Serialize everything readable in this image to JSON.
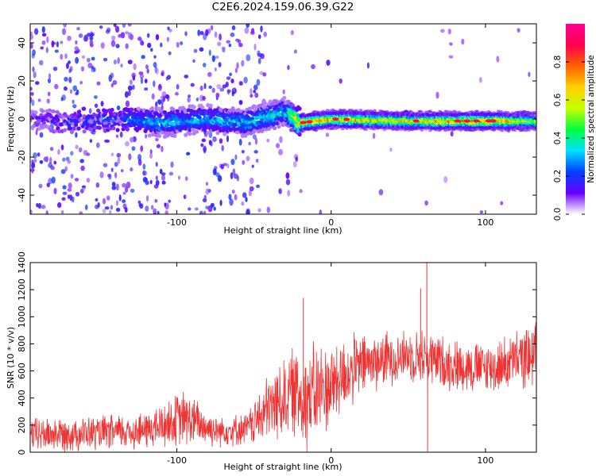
{
  "title": "C2E6.2024.159.06.39.G22",
  "chart_data": [
    {
      "type": "heatmap",
      "xlabel": "Height of straight line (km)",
      "ylabel": "Frequency (Hz)",
      "xlim": [
        -195,
        133
      ],
      "ylim": [
        -50,
        50
      ],
      "x_ticks": [
        -100,
        0,
        100
      ],
      "y_ticks": [
        -40,
        -20,
        0,
        20,
        40
      ],
      "colorbar": {
        "label": "Normalized spectral amplitude",
        "range": [
          0,
          1
        ],
        "ticks": [
          0.0,
          0.2,
          0.4,
          0.6,
          0.8
        ],
        "colormap": [
          "#ffffff",
          "#6a00ff",
          "#0040ff",
          "#00e0ff",
          "#00ff40",
          "#c8ff00",
          "#ffd000",
          "#ff6000",
          "#ff0050",
          "#ff0090"
        ]
      },
      "band_profile": [
        {
          "x": -195,
          "center": 0,
          "amp": 0.1
        },
        {
          "x": -170,
          "center": -2,
          "amp": 0.2
        },
        {
          "x": -130,
          "center": 0,
          "amp": 0.25
        },
        {
          "x": -110,
          "center": -2,
          "amp": 0.35
        },
        {
          "x": -80,
          "center": 0,
          "amp": 0.3
        },
        {
          "x": -55,
          "center": -2,
          "amp": 0.35
        },
        {
          "x": -40,
          "center": 2,
          "amp": 0.4
        },
        {
          "x": -30,
          "center": 4,
          "amp": 0.35
        },
        {
          "x": -20,
          "center": -2,
          "amp": 0.8
        },
        {
          "x": 0,
          "center": 0,
          "amp": 0.7
        },
        {
          "x": 50,
          "center": -1,
          "amp": 0.65
        },
        {
          "x": 100,
          "center": -1,
          "amp": 0.8
        },
        {
          "x": 133,
          "center": -1,
          "amp": 0.55
        }
      ],
      "grid": false
    },
    {
      "type": "line",
      "xlabel": "Height of straight line (km)",
      "ylabel": "SNR (10 * v/v)",
      "xlim": [
        -195,
        133
      ],
      "ylim": [
        0,
        1400
      ],
      "x_ticks": [
        -100,
        0,
        100
      ],
      "y_ticks": [
        0,
        200,
        400,
        600,
        800,
        1000,
        1200,
        1400
      ],
      "line_color": "#ee3333",
      "trend": [
        {
          "x": -195,
          "mean": 130,
          "spread": 120
        },
        {
          "x": -150,
          "mean": 140,
          "spread": 120
        },
        {
          "x": -120,
          "mean": 160,
          "spread": 130
        },
        {
          "x": -95,
          "mean": 250,
          "spread": 200
        },
        {
          "x": -75,
          "mean": 160,
          "spread": 110
        },
        {
          "x": -55,
          "mean": 170,
          "spread": 110
        },
        {
          "x": -40,
          "mean": 320,
          "spread": 250
        },
        {
          "x": -25,
          "mean": 450,
          "spread": 300
        },
        {
          "x": -15,
          "mean": 400,
          "spread": 380
        },
        {
          "x": 0,
          "mean": 500,
          "spread": 300
        },
        {
          "x": 20,
          "mean": 650,
          "spread": 220
        },
        {
          "x": 50,
          "mean": 720,
          "spread": 170
        },
        {
          "x": 60,
          "mean": 700,
          "spread": 200
        },
        {
          "x": 80,
          "mean": 640,
          "spread": 180
        },
        {
          "x": 105,
          "mean": 620,
          "spread": 180
        },
        {
          "x": 133,
          "mean": 730,
          "spread": 220
        }
      ],
      "spikes": [
        {
          "x": -18,
          "value": 1140
        },
        {
          "x": 58,
          "value": 1210
        },
        {
          "x": 62,
          "value": 1400
        },
        {
          "x": 62.5,
          "value": 5
        }
      ],
      "grid": false
    }
  ]
}
